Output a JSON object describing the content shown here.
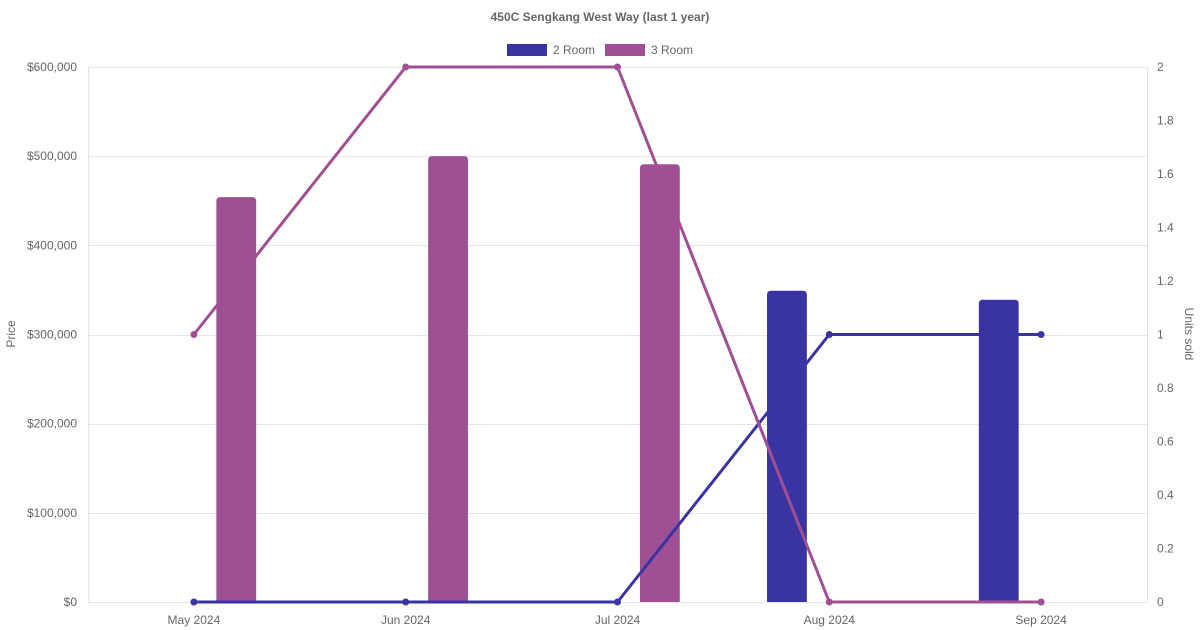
{
  "chart_data": {
    "type": "bar",
    "title": "450C Sengkang West Way (last 1 year)",
    "categories": [
      "May 2024",
      "Jun 2024",
      "Jul 2024",
      "Aug 2024",
      "Sep 2024"
    ],
    "legend": {
      "placement": "top",
      "entries": [
        {
          "name": "2 Room",
          "color": "#3a34a2"
        },
        {
          "name": "3 Room",
          "color": "#9f5095"
        }
      ]
    },
    "price_series": [
      {
        "name": "2 Room",
        "color": "#3a34a2",
        "type": "bar",
        "axis": "left",
        "values": [
          0,
          0,
          0,
          349000,
          339000
        ]
      },
      {
        "name": "3 Room",
        "color": "#9f5095",
        "type": "bar",
        "axis": "left",
        "values": [
          454000,
          500000,
          491000,
          0,
          0
        ]
      }
    ],
    "units_series": [
      {
        "name": "2 Room",
        "color": "#3a34a2",
        "type": "line",
        "axis": "right",
        "values": [
          0,
          0,
          0,
          1,
          1
        ]
      },
      {
        "name": "3 Room",
        "color": "#9f5095",
        "type": "line",
        "axis": "right",
        "values": [
          1,
          2,
          2,
          0,
          0
        ]
      }
    ],
    "left_axis": {
      "label": "Price",
      "ylim": [
        0,
        600000
      ],
      "ticks": [
        "$0",
        "$100,000",
        "$200,000",
        "$300,000",
        "$400,000",
        "$500,000",
        "$600,000"
      ],
      "tick_values": [
        0,
        100000,
        200000,
        300000,
        400000,
        500000,
        600000
      ]
    },
    "right_axis": {
      "label": "Units sold",
      "ylim": [
        0,
        2
      ],
      "ticks": [
        "0",
        "0.2",
        "0.4",
        "0.6",
        "0.8",
        "1",
        "1.2",
        "1.4",
        "1.6",
        "1.8",
        "2"
      ],
      "tick_values": [
        0,
        0.2,
        0.4,
        0.6,
        0.8,
        1,
        1.2,
        1.4,
        1.6,
        1.8,
        2
      ]
    },
    "grid": true
  }
}
